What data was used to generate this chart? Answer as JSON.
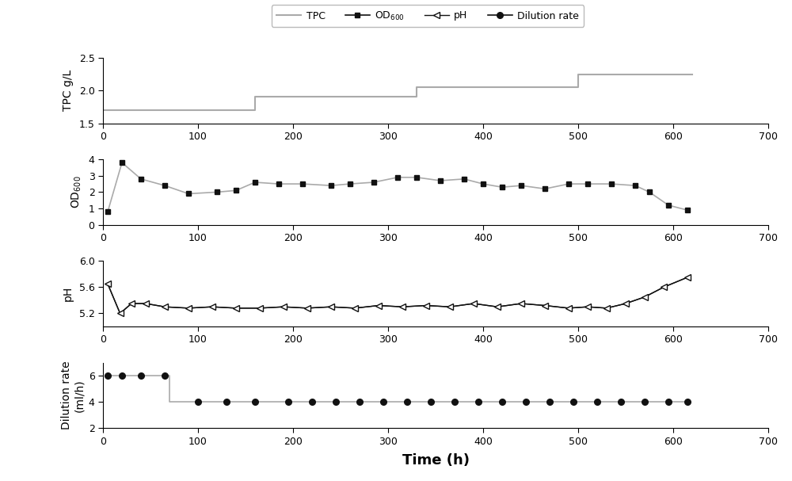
{
  "tpc_x": [
    0,
    10,
    160,
    160,
    330,
    330,
    500,
    500,
    620
  ],
  "tpc_y": [
    1.7,
    1.7,
    1.7,
    1.9,
    1.9,
    2.05,
    2.05,
    2.25,
    2.25
  ],
  "od_x": [
    5,
    20,
    40,
    65,
    90,
    120,
    140,
    160,
    185,
    210,
    240,
    260,
    285,
    310,
    330,
    355,
    380,
    400,
    420,
    440,
    465,
    490,
    510,
    535,
    560,
    575,
    595,
    615
  ],
  "od_y": [
    0.8,
    3.8,
    2.8,
    2.4,
    1.9,
    2.0,
    2.1,
    2.6,
    2.5,
    2.5,
    2.4,
    2.5,
    2.6,
    2.9,
    2.9,
    2.7,
    2.8,
    2.5,
    2.3,
    2.4,
    2.2,
    2.5,
    2.5,
    2.5,
    2.4,
    2.0,
    1.2,
    0.9
  ],
  "ph_x": [
    5,
    18,
    30,
    45,
    65,
    90,
    115,
    140,
    165,
    190,
    215,
    240,
    265,
    290,
    315,
    340,
    365,
    390,
    415,
    440,
    465,
    490,
    510,
    530,
    550,
    570,
    590,
    615
  ],
  "ph_y": [
    5.65,
    5.2,
    5.35,
    5.35,
    5.3,
    5.28,
    5.3,
    5.28,
    5.28,
    5.3,
    5.28,
    5.3,
    5.28,
    5.32,
    5.3,
    5.32,
    5.3,
    5.35,
    5.3,
    5.35,
    5.32,
    5.28,
    5.3,
    5.28,
    5.35,
    5.45,
    5.6,
    5.75
  ],
  "dr_x": [
    5,
    20,
    40,
    65,
    70,
    70,
    100,
    130,
    160,
    195,
    220,
    245,
    270,
    295,
    320,
    345,
    370,
    395,
    420,
    445,
    470,
    495,
    520,
    545,
    570,
    595,
    615
  ],
  "dr_y": [
    6,
    6,
    6,
    6,
    6,
    4,
    4,
    4,
    4,
    4,
    4,
    4,
    4,
    4,
    4,
    4,
    4,
    4,
    4,
    4,
    4,
    4,
    4,
    4,
    4,
    4,
    4
  ],
  "dr_markers_x": [
    5,
    20,
    40,
    65,
    100,
    130,
    160,
    195,
    220,
    245,
    270,
    295,
    320,
    345,
    370,
    395,
    420,
    445,
    470,
    495,
    520,
    545,
    570,
    595,
    615
  ],
  "dr_markers_y": [
    6,
    6,
    6,
    6,
    4,
    4,
    4,
    4,
    4,
    4,
    4,
    4,
    4,
    4,
    4,
    4,
    4,
    4,
    4,
    4,
    4,
    4,
    4,
    4,
    4
  ],
  "xlim": [
    0,
    700
  ],
  "xticks": [
    0,
    100,
    200,
    300,
    400,
    500,
    600,
    700
  ],
  "tpc_ylim": [
    1.5,
    2.5
  ],
  "tpc_yticks": [
    1.5,
    2.0,
    2.5
  ],
  "tpc_ylabel": "TPC g/L",
  "od_ylim": [
    0,
    4
  ],
  "od_yticks": [
    0,
    1,
    2,
    3,
    4
  ],
  "od_ylabel": "OD$_{600}$",
  "ph_ylim": [
    5.0,
    6.0
  ],
  "ph_yticks": [
    5.2,
    5.6,
    6.0
  ],
  "ph_ylabel": "pH",
  "dr_ylim": [
    2,
    7
  ],
  "dr_yticks": [
    2,
    4,
    6
  ],
  "dr_ylabel": "Dilution rate\n(ml/h)",
  "xlabel": "Time (h)",
  "line_color": "#aaaaaa",
  "dark_color": "#111111",
  "bg_color": "#ffffff"
}
